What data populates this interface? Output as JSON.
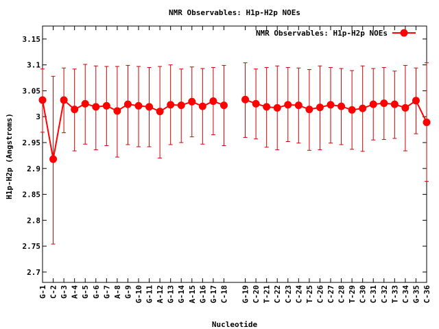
{
  "chart_data": {
    "type": "line",
    "title": "NMR Observables: H1p-H2p NOEs",
    "xlabel": "Nucleotide",
    "ylabel": "H1p-H2p (Angstroms)",
    "ylim": [
      2.68,
      3.175
    ],
    "yticks": [
      2.7,
      2.75,
      2.8,
      2.85,
      2.9,
      2.95,
      3,
      3.05,
      3.1,
      3.15
    ],
    "ytick_labels": [
      "2.7",
      "2.75",
      "2.8",
      "2.85",
      "2.9",
      "2.95",
      "3",
      "3.05",
      "3.1",
      "3.15"
    ],
    "xlim": [
      1,
      37
    ],
    "grid": false,
    "legend": "top-right",
    "colors": {
      "series": "#ff0000",
      "errorbar": "#cc0000",
      "axis": "#000000"
    },
    "categories": [
      "G-1",
      "C-2",
      "G-3",
      "A-4",
      "G-5",
      "G-6",
      "G-7",
      "A-8",
      "G-9",
      "G-10",
      "G-11",
      "A-12",
      "G-13",
      "G-14",
      "A-15",
      "G-16",
      "G-17",
      "C-18",
      "G-19",
      "C-20",
      "T-21",
      "C-22",
      "C-23",
      "C-24",
      "T-25",
      "C-26",
      "C-27",
      "C-28",
      "T-29",
      "C-30",
      "C-31",
      "C-32",
      "T-33",
      "C-34",
      "G-35",
      "C-36"
    ],
    "x": [
      1,
      2,
      3,
      4,
      5,
      6,
      7,
      8,
      9,
      10,
      11,
      12,
      13,
      14,
      15,
      16,
      17,
      18,
      20,
      21,
      22,
      23,
      24,
      25,
      26,
      27,
      28,
      29,
      30,
      31,
      32,
      33,
      34,
      35,
      36,
      37
    ],
    "series": [
      {
        "name": "NMR Observables: H1p-H2p NOEs",
        "segments": [
          [
            0,
            17
          ],
          [
            18,
            35
          ]
        ],
        "values": [
          3.032,
          2.918,
          3.032,
          3.014,
          3.025,
          3.019,
          3.021,
          3.011,
          3.024,
          3.021,
          3.019,
          3.01,
          3.023,
          3.022,
          3.029,
          3.02,
          3.03,
          3.022,
          3.033,
          3.025,
          3.019,
          3.017,
          3.023,
          3.022,
          3.014,
          3.018,
          3.023,
          3.02,
          3.013,
          3.016,
          3.024,
          3.026,
          3.024,
          3.017,
          3.031,
          2.989
        ],
        "err_low": [
          2.97,
          2.754,
          2.969,
          2.934,
          2.947,
          2.936,
          2.944,
          2.922,
          2.946,
          2.942,
          2.942,
          2.92,
          2.946,
          2.95,
          2.961,
          2.947,
          2.965,
          2.944,
          2.96,
          2.957,
          2.941,
          2.936,
          2.952,
          2.949,
          2.935,
          2.936,
          2.949,
          2.946,
          2.937,
          2.933,
          2.955,
          2.956,
          2.958,
          2.934,
          2.967,
          2.875
        ],
        "err_high": [
          3.092,
          3.078,
          3.094,
          3.092,
          3.101,
          3.098,
          3.097,
          3.097,
          3.099,
          3.097,
          3.095,
          3.097,
          3.1,
          3.092,
          3.096,
          3.093,
          3.095,
          3.099,
          3.104,
          3.092,
          3.095,
          3.098,
          3.095,
          3.094,
          3.091,
          3.098,
          3.095,
          3.093,
          3.089,
          3.098,
          3.093,
          3.095,
          3.088,
          3.099,
          3.094,
          3.104
        ]
      }
    ]
  }
}
